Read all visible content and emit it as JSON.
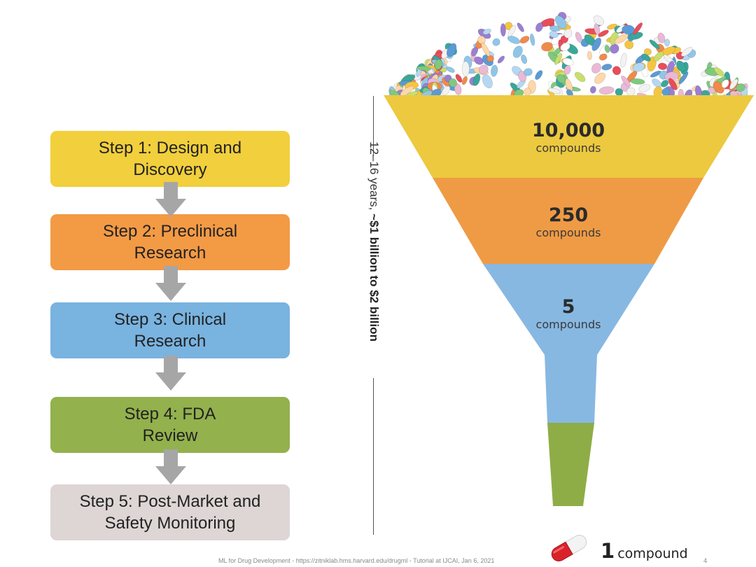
{
  "steps": [
    {
      "line1": "Step 1: Design and",
      "line2": "Discovery",
      "color": "#f2cf3c"
    },
    {
      "line1": "Step 2: Preclinical",
      "line2": "Research",
      "color": "#f39a45"
    },
    {
      "line1": "Step 3: Clinical",
      "line2": "Research",
      "color": "#79b3e0"
    },
    {
      "line1": "Step 4: FDA",
      "line2": "Review",
      "color": "#93b14c"
    },
    {
      "line1": "Step 5: Post-Market and",
      "line2": "Safety Monitoring",
      "color": "#ddd6d5"
    }
  ],
  "arrow_color": "#a6a6a6",
  "funnel": {
    "stages": [
      {
        "number": "10,000",
        "unit": "compounds",
        "color": "#ecc93f"
      },
      {
        "number": "250",
        "unit": "compounds",
        "color": "#ef9b45"
      },
      {
        "number": "5",
        "unit": "compounds",
        "color": "#87b8e2"
      },
      {
        "color": "#8ead47"
      }
    ],
    "final": {
      "number": "1",
      "unit": "compound"
    }
  },
  "timeline": {
    "prefix": "12–16 years, ",
    "bold": "~$1 billion to $2 billion"
  },
  "footer": "ML for Drug Development - https://zitniklab.hms.harvard.edu/drugml - Tutorial at IJCAI, Jan 6, 2021",
  "page_number": "4"
}
